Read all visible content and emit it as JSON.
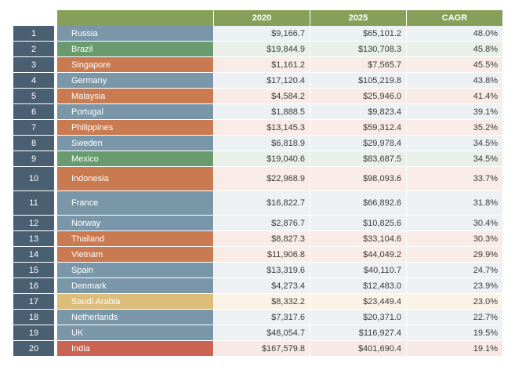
{
  "header": {
    "col_2020": "2020",
    "col_2025": "2025",
    "col_cagr": "CAGR"
  },
  "colors": {
    "blue": "#7a97a9",
    "green": "#6a9b6e",
    "orange": "#c97a50",
    "gold": "#dcbd7a",
    "red": "#c86451",
    "rank_bg": "#4b5f73",
    "header_green": "#86a05a"
  },
  "rows": [
    {
      "rank": "1",
      "country": "Russia",
      "v2020": "$9,166.7",
      "v2025": "$65,101.2",
      "cagr": "48.0%",
      "color": "blue"
    },
    {
      "rank": "2",
      "country": "Brazil",
      "v2020": "$19,844.9",
      "v2025": "$130,708.3",
      "cagr": "45.8%",
      "color": "green"
    },
    {
      "rank": "3",
      "country": "Singapore",
      "v2020": "$1,161.2",
      "v2025": "$7,565.7",
      "cagr": "45.5%",
      "color": "orange"
    },
    {
      "rank": "4",
      "country": "Germany",
      "v2020": "$17,120.4",
      "v2025": "$105,219.8",
      "cagr": "43.8%",
      "color": "blue"
    },
    {
      "rank": "5",
      "country": "Malaysia",
      "v2020": "$4,584.2",
      "v2025": "$25,946.0",
      "cagr": "41.4%",
      "color": "orange"
    },
    {
      "rank": "6",
      "country": "Portugal",
      "v2020": "$1,888.5",
      "v2025": "$9,823.4",
      "cagr": "39.1%",
      "color": "blue"
    },
    {
      "rank": "7",
      "country": "Philippines",
      "v2020": "$13,145.3",
      "v2025": "$59,312.4",
      "cagr": "35.2%",
      "color": "orange"
    },
    {
      "rank": "8",
      "country": "Sweden",
      "v2020": "$6,818.9",
      "v2025": "$29,978.4",
      "cagr": "34.5%",
      "color": "blue"
    },
    {
      "rank": "9",
      "country": "Mexico",
      "v2020": "$19,040.6",
      "v2025": "$83,687.5",
      "cagr": "34.5%",
      "color": "green"
    },
    {
      "rank": "10",
      "country": "Indonesia",
      "v2020": "$22,968.9",
      "v2025": "$98,093.6",
      "cagr": "33.7%",
      "color": "orange",
      "tall": true
    },
    {
      "rank": "11",
      "country": "France",
      "v2020": "$16,822.7",
      "v2025": "$66,892.6",
      "cagr": "31.8%",
      "color": "blue",
      "tall": true
    },
    {
      "rank": "12",
      "country": "Norway",
      "v2020": "$2,876.7",
      "v2025": "$10,825.6",
      "cagr": "30.4%",
      "color": "blue"
    },
    {
      "rank": "13",
      "country": "Thailand",
      "v2020": "$8,827.3",
      "v2025": "$33,104.6",
      "cagr": "30.3%",
      "color": "orange"
    },
    {
      "rank": "14",
      "country": "Vietnam",
      "v2020": "$11,906.8",
      "v2025": "$44,049.2",
      "cagr": "29.9%",
      "color": "orange"
    },
    {
      "rank": "15",
      "country": "Spain",
      "v2020": "$13,319.6",
      "v2025": "$40,110.7",
      "cagr": "24.7%",
      "color": "blue"
    },
    {
      "rank": "16",
      "country": "Denmark",
      "v2020": "$4,273.4",
      "v2025": "$12,483.0",
      "cagr": "23.9%",
      "color": "blue"
    },
    {
      "rank": "17",
      "country": "Saudi Arabia",
      "v2020": "$8,332.2",
      "v2025": "$23,449.4",
      "cagr": "23.0%",
      "color": "gold"
    },
    {
      "rank": "18",
      "country": "Netherlands",
      "v2020": "$7,317.6",
      "v2025": "$20,371.0",
      "cagr": "22.7%",
      "color": "blue"
    },
    {
      "rank": "19",
      "country": "UK",
      "v2020": "$48,054.7",
      "v2025": "$116,927.4",
      "cagr": "19.5%",
      "color": "blue"
    },
    {
      "rank": "20",
      "country": "India",
      "v2020": "$167,579.8",
      "v2025": "$401,690.4",
      "cagr": "19.1%",
      "color": "red"
    }
  ]
}
